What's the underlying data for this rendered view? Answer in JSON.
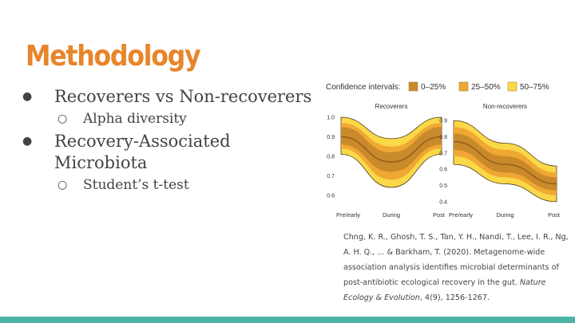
{
  "slide": {
    "title": "Methodology",
    "bullets": [
      {
        "text": "Recoverers vs Non-recoverers",
        "sub": [
          "Alpha diversity"
        ]
      },
      {
        "text": "Recovery-Associated Microbiota",
        "sub": [
          "Student’s t-test"
        ]
      }
    ],
    "citation": {
      "authors": "Chng, K. R., Ghosh, T. S., Tan, Y. H., Nandi, T., Lee, I. R., Ng, A. H. Q., ... & Barkham, T. (2020). Metagenome-wide association analysis identifies microbial determinants of post-antibiotic ecological recovery in the gut.",
      "journal": "Nature Ecology & Evolution",
      "rest": ", 4(9), 1256-1267."
    },
    "colors": {
      "title": "#e8852b",
      "footer": "#4eb5a5"
    }
  },
  "chart_data": [
    {
      "type": "area",
      "title": "Recoverers",
      "legend_title": "Confidence intervals:",
      "legend": [
        "0–25%",
        "25–50%",
        "50–75%"
      ],
      "band_colors": [
        "#c98a2c",
        "#f0a833",
        "#fbd847"
      ],
      "x": [
        "Pre/early",
        "During",
        "Post"
      ],
      "yticks": [
        "1.0",
        "0.9",
        "0.8",
        "0.7",
        "0.6"
      ],
      "ylim": [
        0.55,
        1.0
      ],
      "median": [
        0.9,
        0.77,
        0.9
      ],
      "bands": {
        "50": [
          [
            0.86,
            0.95
          ],
          [
            0.72,
            0.82
          ],
          [
            0.86,
            0.95
          ]
        ],
        "75": [
          [
            0.84,
            0.97
          ],
          [
            0.68,
            0.85
          ],
          [
            0.84,
            0.97
          ]
        ],
        "90": [
          [
            0.81,
            1.0
          ],
          [
            0.64,
            0.89
          ],
          [
            0.81,
            1.0
          ]
        ]
      }
    },
    {
      "type": "area",
      "title": "Non-recoverers",
      "x": [
        "Pre/early",
        "During",
        "Post"
      ],
      "yticks": [
        "0.9",
        "0.8",
        "0.7",
        "0.6",
        "0.5",
        "0.4"
      ],
      "ylim": [
        0.38,
        0.92
      ],
      "median": [
        0.77,
        0.63,
        0.51
      ],
      "bands": {
        "50": [
          [
            0.72,
            0.82
          ],
          [
            0.58,
            0.68
          ],
          [
            0.47,
            0.55
          ]
        ],
        "75": [
          [
            0.68,
            0.86
          ],
          [
            0.55,
            0.72
          ],
          [
            0.44,
            0.58
          ]
        ],
        "90": [
          [
            0.63,
            0.9
          ],
          [
            0.51,
            0.76
          ],
          [
            0.4,
            0.62
          ]
        ]
      }
    }
  ]
}
